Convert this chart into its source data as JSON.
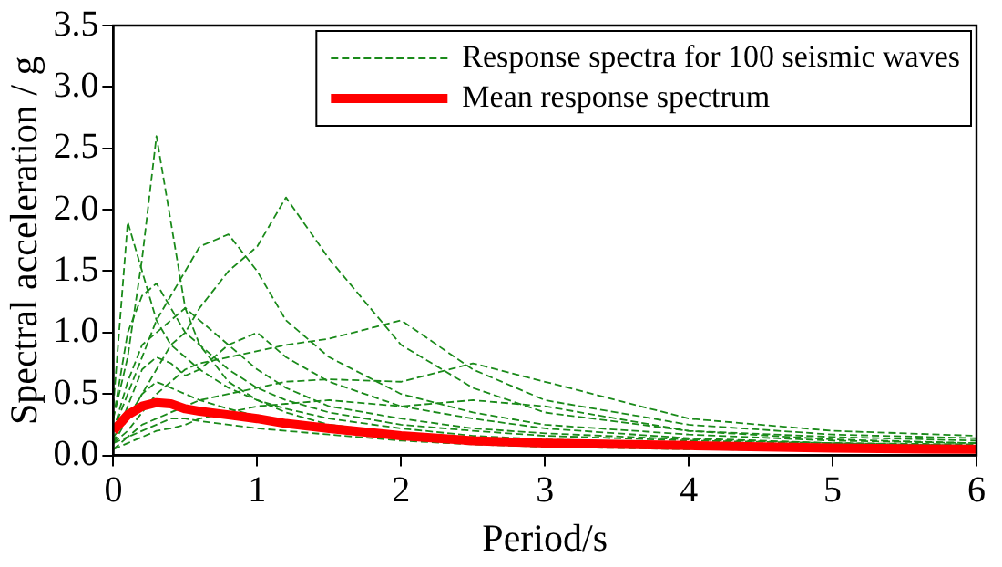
{
  "chart_data": {
    "type": "line",
    "xlabel": "Period/s",
    "ylabel": "Spectral acceleration / g",
    "xlim": [
      0,
      6
    ],
    "xticks": [
      0,
      1,
      2,
      3,
      4,
      5,
      6
    ],
    "ylim": [
      0,
      3.5
    ],
    "yticks": [
      {
        "value": 0,
        "label": "0.0"
      },
      {
        "value": 0.5,
        "label": "0.5"
      },
      {
        "value": 1,
        "label": "1.0"
      },
      {
        "value": 1.5,
        "label": "1.5"
      },
      {
        "value": 2,
        "label": "2.0"
      },
      {
        "value": 2.5,
        "label": "2.5"
      },
      {
        "value": 3,
        "label": "3.0"
      },
      {
        "value": 3.5,
        "label": "3.5"
      }
    ],
    "x": [
      0,
      0.1,
      0.2,
      0.3,
      0.4,
      0.5,
      0.6,
      0.8,
      1.0,
      1.2,
      1.5,
      2,
      2.5,
      3,
      4,
      5,
      6
    ],
    "legend": "top right",
    "grid": false,
    "series": [
      {
        "name": "Response spectra for 100 seismic waves",
        "color": "#1a8a1a",
        "line_style": "dashed",
        "values": [
          0.3,
          0.8,
          1.6,
          2.6,
          1.9,
          1.2,
          0.9,
          0.6,
          0.45,
          0.35,
          0.25,
          0.18,
          0.14,
          0.12,
          0.09,
          0.07,
          0.06
        ]
      },
      {
        "color": "#1a8a1a",
        "line_style": "dashed",
        "values": [
          0.4,
          1.9,
          1.5,
          1.1,
          0.9,
          0.8,
          0.7,
          0.55,
          0.45,
          0.38,
          0.3,
          0.22,
          0.16,
          0.13,
          0.1,
          0.08,
          0.07
        ]
      },
      {
        "color": "#1a8a1a",
        "line_style": "dashed",
        "values": [
          0.2,
          0.5,
          0.8,
          1.1,
          1.3,
          1.5,
          1.7,
          1.8,
          1.5,
          1.1,
          0.8,
          0.5,
          0.35,
          0.25,
          0.17,
          0.12,
          0.1
        ]
      },
      {
        "color": "#1a8a1a",
        "line_style": "dashed",
        "values": [
          0.15,
          0.3,
          0.5,
          0.7,
          0.9,
          1.0,
          1.2,
          1.5,
          1.7,
          2.1,
          1.6,
          0.9,
          0.55,
          0.35,
          0.2,
          0.15,
          0.12
        ]
      },
      {
        "color": "#1a8a1a",
        "line_style": "dashed",
        "values": [
          0.1,
          0.2,
          0.35,
          0.5,
          0.6,
          0.7,
          0.75,
          0.8,
          0.85,
          0.9,
          0.95,
          1.1,
          0.7,
          0.45,
          0.25,
          0.17,
          0.14
        ]
      },
      {
        "color": "#1a8a1a",
        "line_style": "dashed",
        "values": [
          0.1,
          0.15,
          0.25,
          0.3,
          0.35,
          0.4,
          0.45,
          0.5,
          0.55,
          0.6,
          0.62,
          0.6,
          0.75,
          0.6,
          0.3,
          0.2,
          0.16
        ]
      },
      {
        "color": "#1a8a1a",
        "line_style": "dashed",
        "values": [
          0.3,
          1.0,
          1.3,
          1.4,
          1.2,
          1.0,
          0.9,
          0.7,
          0.55,
          0.45,
          0.35,
          0.25,
          0.2,
          0.16,
          0.12,
          0.1,
          0.08
        ]
      },
      {
        "color": "#1a8a1a",
        "line_style": "dashed",
        "values": [
          0.2,
          0.6,
          0.9,
          1.0,
          1.1,
          1.2,
          1.1,
          0.9,
          0.7,
          0.55,
          0.4,
          0.3,
          0.22,
          0.18,
          0.13,
          0.1,
          0.09
        ]
      },
      {
        "color": "#1a8a1a",
        "line_style": "dashed",
        "values": [
          0.1,
          0.3,
          0.5,
          0.6,
          0.55,
          0.5,
          0.45,
          0.38,
          0.32,
          0.27,
          0.22,
          0.16,
          0.12,
          0.1,
          0.07,
          0.05,
          0.04
        ]
      },
      {
        "color": "#1a8a1a",
        "line_style": "dashed",
        "values": [
          0.05,
          0.15,
          0.2,
          0.25,
          0.3,
          0.3,
          0.28,
          0.25,
          0.22,
          0.2,
          0.17,
          0.12,
          0.09,
          0.07,
          0.05,
          0.04,
          0.03
        ]
      },
      {
        "color": "#1a8a1a",
        "line_style": "dashed",
        "values": [
          0.1,
          0.4,
          0.7,
          0.8,
          0.75,
          0.65,
          0.7,
          0.9,
          1.0,
          0.8,
          0.6,
          0.4,
          0.45,
          0.4,
          0.2,
          0.13,
          0.1
        ]
      },
      {
        "color": "#1a8a1a",
        "line_style": "dashed",
        "values": [
          0.05,
          0.1,
          0.15,
          0.2,
          0.22,
          0.25,
          0.3,
          0.35,
          0.4,
          0.42,
          0.45,
          0.4,
          0.3,
          0.22,
          0.14,
          0.1,
          0.08
        ]
      },
      {
        "name": "Mean response spectrum",
        "color": "#ff0000",
        "line_style": "solid",
        "values": [
          0.2,
          0.33,
          0.4,
          0.43,
          0.42,
          0.38,
          0.36,
          0.33,
          0.3,
          0.26,
          0.22,
          0.16,
          0.12,
          0.1,
          0.08,
          0.06,
          0.05
        ]
      }
    ]
  }
}
